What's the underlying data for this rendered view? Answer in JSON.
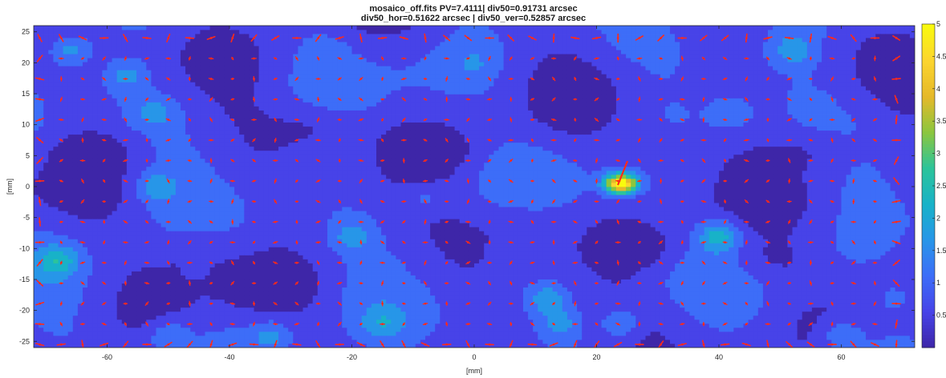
{
  "chart_data": {
    "type": "heatmap",
    "title": "mosaico_off.fits  PV=7.4111| div50=0.91731 arcsec",
    "subtitle": "div50_hor=0.51622 arcsec | div50_ver=0.52857 arcsec",
    "xlabel": "[mm]",
    "ylabel": "[mm]",
    "xlim": [
      -72,
      72
    ],
    "ylim": [
      -26,
      26
    ],
    "x_ticks": [
      -60,
      -40,
      -20,
      0,
      20,
      40,
      60
    ],
    "y_ticks": [
      -25,
      -20,
      -15,
      -10,
      -5,
      0,
      5,
      10,
      15,
      20,
      25
    ],
    "colorbar": {
      "range": [
        0,
        5
      ],
      "ticks": [
        0.5,
        1,
        1.5,
        2,
        2.5,
        3,
        3.5,
        4,
        4.5,
        5
      ],
      "tick_labels": [
        "0.5",
        "1",
        "1.5",
        "2",
        "2.5",
        "3",
        "3.5",
        "4",
        "4.5",
        "5"
      ]
    },
    "colormap": [
      "#3e26a8",
      "#4743e8",
      "#3d6df8",
      "#2796e8",
      "#18b2c8",
      "#2cc49a",
      "#8cc63e",
      "#e6b92a",
      "#fcd52e",
      "#f9fb0e"
    ],
    "background_level": 0.8,
    "hotspots": [
      {
        "x": 24,
        "y": 0.5,
        "peak": 5.0
      },
      {
        "x": 40,
        "y": -8,
        "peak": 2.2
      },
      {
        "x": -68,
        "y": -12,
        "peak": 2.0
      },
      {
        "x": -66,
        "y": 22,
        "peak": 1.8
      },
      {
        "x": -57,
        "y": 18,
        "peak": 1.6
      },
      {
        "x": -52,
        "y": 0,
        "peak": 1.7
      },
      {
        "x": -52,
        "y": 12,
        "peak": 1.5
      },
      {
        "x": -50,
        "y": -24,
        "peak": 1.6
      },
      {
        "x": -33,
        "y": -24,
        "peak": 1.6
      },
      {
        "x": -20,
        "y": -8,
        "peak": 1.6
      },
      {
        "x": -15,
        "y": -22,
        "peak": 1.5
      },
      {
        "x": -8,
        "y": -2,
        "peak": 1.4
      },
      {
        "x": 12,
        "y": -18,
        "peak": 1.8
      },
      {
        "x": 14,
        "y": -22,
        "peak": 1.6
      },
      {
        "x": 24,
        "y": -22,
        "peak": 1.7
      },
      {
        "x": 42,
        "y": 12,
        "peak": 1.5
      },
      {
        "x": 52,
        "y": 22,
        "peak": 1.7
      },
      {
        "x": 60,
        "y": -24,
        "peak": 1.6
      },
      {
        "x": 69,
        "y": -18,
        "peak": 1.4
      },
      {
        "x": 0,
        "y": 20,
        "peak": 1.2
      },
      {
        "x": -24,
        "y": 22,
        "peak": 1.2
      }
    ],
    "lows": [
      {
        "x": -46,
        "y": -10
      },
      {
        "x": -26,
        "y": 10
      },
      {
        "x": -6,
        "y": 6
      },
      {
        "x": -34,
        "y": -16
      },
      {
        "x": 8,
        "y": -6
      },
      {
        "x": 32,
        "y": 6
      },
      {
        "x": 56,
        "y": 6
      },
      {
        "x": 48,
        "y": -12
      },
      {
        "x": -62,
        "y": 6
      },
      {
        "x": 28,
        "y": -10
      }
    ],
    "vector_grid": {
      "x_start": -71,
      "x_step": 3.5,
      "count_x": 41,
      "y_start": -25.5,
      "y_step": 3.3,
      "count_y": 16,
      "color": "#ff2a1a"
    },
    "grid": false,
    "colorbar_position": "right"
  }
}
